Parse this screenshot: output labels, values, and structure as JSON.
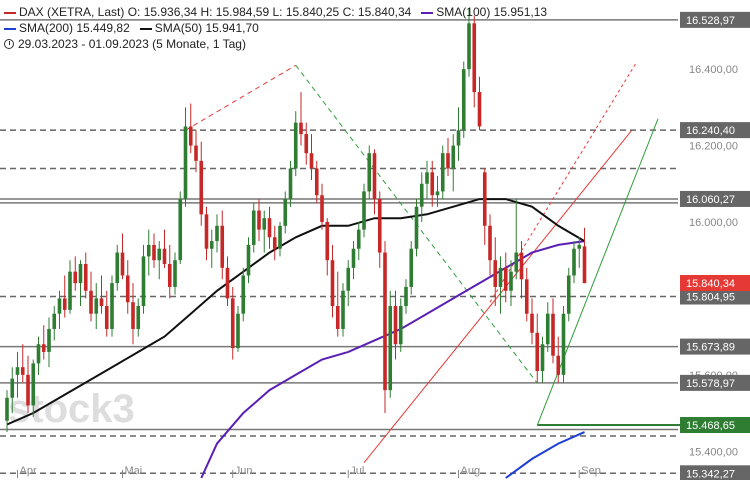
{
  "legend": {
    "instrument": "DAX (XETRA, Last)",
    "open": "O: 15.936,34",
    "high": "H: 15.984,59",
    "low": "L: 15.840,25",
    "close": "C: 15.840,34",
    "sma100_label": "SMA(100)",
    "sma100_value": "15.951,13",
    "sma200_label": "SMA(200)",
    "sma200_value": "15.449,82",
    "sma50_label": "SMA(50)",
    "sma50_value": "15.941,70",
    "range": "29.03.2023 - 01.09.2023",
    "period": "(5 Monate, 1 Tag)"
  },
  "watermark": "stock3",
  "colors": {
    "up": "#2e7d32",
    "down": "#c62828",
    "sma50": "#111111",
    "sma100": "#5a1fb3",
    "sma200": "#1e3fd6",
    "level_tag": "#666666",
    "price_tag": "#e53935",
    "support_tag": "#2e7d32"
  },
  "chart_data": {
    "type": "candlestick",
    "ylim": [
      15330,
      16560
    ],
    "x_ticks": [
      {
        "label": "Apr",
        "day": 3
      },
      {
        "label": "Mai",
        "day": 23
      },
      {
        "label": "Jun",
        "day": 44
      },
      {
        "label": "Jul",
        "day": 66
      },
      {
        "label": "Aug",
        "day": 87
      },
      {
        "label": "Sep",
        "day": 110
      }
    ],
    "y_ticks": [
      {
        "value": 16400,
        "label": "16.400,00"
      },
      {
        "value": 16200,
        "label": "16.200,00"
      },
      {
        "value": 16000,
        "label": "16.000,00"
      },
      {
        "value": 15600,
        "label": "15.600,00"
      },
      {
        "value": 15400,
        "label": "15.400,00"
      }
    ],
    "levels": [
      {
        "value": 16528.97,
        "label": "16.528,97",
        "style": "solid"
      },
      {
        "value": 16240.4,
        "label": "16.240,40",
        "style": "dashed"
      },
      {
        "value": 16140,
        "label": "",
        "style": "dashed"
      },
      {
        "value": 16060.27,
        "label": "16.060,27",
        "style": "solid"
      },
      {
        "value": 16050,
        "label": "",
        "style": "solid"
      },
      {
        "value": 15804.95,
        "label": "15.804,95",
        "style": "dashed"
      },
      {
        "value": 15673.89,
        "label": "15.673,89",
        "style": "solid"
      },
      {
        "value": 15578.97,
        "label": "15.578,97",
        "style": "solid"
      },
      {
        "value": 15468.65,
        "label": "15.468,65",
        "style": "green"
      },
      {
        "value": 15457,
        "label": "",
        "style": "solid"
      },
      {
        "value": 15440,
        "label": "",
        "style": "dashed"
      },
      {
        "value": 15342.27,
        "label": "15.342,27",
        "style": "dashed"
      }
    ],
    "last_price": {
      "value": 15840.34,
      "label": "15.840,34"
    },
    "candles": [
      {
        "day": 1,
        "o": 15480,
        "h": 15560,
        "l": 15450,
        "c": 15540
      },
      {
        "day": 2,
        "o": 15540,
        "h": 15620,
        "l": 15500,
        "c": 15590
      },
      {
        "day": 3,
        "o": 15600,
        "h": 15660,
        "l": 15540,
        "c": 15620
      },
      {
        "day": 4,
        "o": 15620,
        "h": 15680,
        "l": 15580,
        "c": 15600
      },
      {
        "day": 5,
        "o": 15600,
        "h": 15650,
        "l": 15500,
        "c": 15520
      },
      {
        "day": 6,
        "o": 15520,
        "h": 15640,
        "l": 15490,
        "c": 15630
      },
      {
        "day": 7,
        "o": 15630,
        "h": 15700,
        "l": 15600,
        "c": 15680
      },
      {
        "day": 8,
        "o": 15680,
        "h": 15730,
        "l": 15640,
        "c": 15660
      },
      {
        "day": 9,
        "o": 15660,
        "h": 15750,
        "l": 15620,
        "c": 15720
      },
      {
        "day": 10,
        "o": 15720,
        "h": 15780,
        "l": 15690,
        "c": 15760
      },
      {
        "day": 11,
        "o": 15760,
        "h": 15820,
        "l": 15720,
        "c": 15800
      },
      {
        "day": 12,
        "o": 15800,
        "h": 15860,
        "l": 15750,
        "c": 15770
      },
      {
        "day": 13,
        "o": 15770,
        "h": 15900,
        "l": 15760,
        "c": 15870
      },
      {
        "day": 14,
        "o": 15870,
        "h": 15910,
        "l": 15820,
        "c": 15840
      },
      {
        "day": 15,
        "o": 15840,
        "h": 15900,
        "l": 15780,
        "c": 15890
      },
      {
        "day": 16,
        "o": 15890,
        "h": 15920,
        "l": 15800,
        "c": 15820
      },
      {
        "day": 17,
        "o": 15820,
        "h": 15870,
        "l": 15740,
        "c": 15760
      },
      {
        "day": 18,
        "o": 15760,
        "h": 15840,
        "l": 15720,
        "c": 15800
      },
      {
        "day": 19,
        "o": 15800,
        "h": 15860,
        "l": 15760,
        "c": 15780
      },
      {
        "day": 20,
        "o": 15780,
        "h": 15820,
        "l": 15700,
        "c": 15720
      },
      {
        "day": 21,
        "o": 15720,
        "h": 15860,
        "l": 15700,
        "c": 15840
      },
      {
        "day": 22,
        "o": 15840,
        "h": 15940,
        "l": 15820,
        "c": 15920
      },
      {
        "day": 23,
        "o": 15920,
        "h": 15970,
        "l": 15850,
        "c": 15860
      },
      {
        "day": 24,
        "o": 15860,
        "h": 15900,
        "l": 15760,
        "c": 15790
      },
      {
        "day": 25,
        "o": 15790,
        "h": 15840,
        "l": 15680,
        "c": 15720
      },
      {
        "day": 26,
        "o": 15720,
        "h": 15800,
        "l": 15700,
        "c": 15780
      },
      {
        "day": 27,
        "o": 15780,
        "h": 15940,
        "l": 15760,
        "c": 15910
      },
      {
        "day": 28,
        "o": 15910,
        "h": 15980,
        "l": 15860,
        "c": 15940
      },
      {
        "day": 29,
        "o": 15940,
        "h": 15970,
        "l": 15880,
        "c": 15900
      },
      {
        "day": 30,
        "o": 15900,
        "h": 15950,
        "l": 15850,
        "c": 15930
      },
      {
        "day": 31,
        "o": 15930,
        "h": 15980,
        "l": 15880,
        "c": 15890
      },
      {
        "day": 32,
        "o": 15890,
        "h": 15940,
        "l": 15800,
        "c": 15830
      },
      {
        "day": 33,
        "o": 15830,
        "h": 15920,
        "l": 15810,
        "c": 15900
      },
      {
        "day": 34,
        "o": 15900,
        "h": 16080,
        "l": 15890,
        "c": 16060
      },
      {
        "day": 35,
        "o": 16060,
        "h": 16300,
        "l": 16040,
        "c": 16250
      },
      {
        "day": 36,
        "o": 16250,
        "h": 16310,
        "l": 16180,
        "c": 16200
      },
      {
        "day": 37,
        "o": 16200,
        "h": 16240,
        "l": 16130,
        "c": 16160
      },
      {
        "day": 38,
        "o": 16160,
        "h": 16210,
        "l": 15990,
        "c": 16020
      },
      {
        "day": 39,
        "o": 16020,
        "h": 16040,
        "l": 15900,
        "c": 15930
      },
      {
        "day": 40,
        "o": 15930,
        "h": 15980,
        "l": 15880,
        "c": 15950
      },
      {
        "day": 41,
        "o": 15950,
        "h": 16020,
        "l": 15920,
        "c": 15990
      },
      {
        "day": 42,
        "o": 15990,
        "h": 16030,
        "l": 15850,
        "c": 15880
      },
      {
        "day": 43,
        "o": 15880,
        "h": 15910,
        "l": 15780,
        "c": 15800
      },
      {
        "day": 44,
        "o": 15800,
        "h": 15830,
        "l": 15640,
        "c": 15670
      },
      {
        "day": 45,
        "o": 15670,
        "h": 15780,
        "l": 15660,
        "c": 15760
      },
      {
        "day": 46,
        "o": 15760,
        "h": 15880,
        "l": 15740,
        "c": 15860
      },
      {
        "day": 47,
        "o": 15860,
        "h": 15960,
        "l": 15840,
        "c": 15940
      },
      {
        "day": 48,
        "o": 15940,
        "h": 16050,
        "l": 15920,
        "c": 16030
      },
      {
        "day": 49,
        "o": 16030,
        "h": 16060,
        "l": 15950,
        "c": 15980
      },
      {
        "day": 50,
        "o": 15980,
        "h": 16030,
        "l": 15920,
        "c": 16010
      },
      {
        "day": 51,
        "o": 16010,
        "h": 16040,
        "l": 15930,
        "c": 15960
      },
      {
        "day": 52,
        "o": 15960,
        "h": 15990,
        "l": 15900,
        "c": 15930
      },
      {
        "day": 53,
        "o": 15930,
        "h": 16000,
        "l": 15910,
        "c": 15990
      },
      {
        "day": 54,
        "o": 15990,
        "h": 16080,
        "l": 15970,
        "c": 16060
      },
      {
        "day": 55,
        "o": 16060,
        "h": 16160,
        "l": 16040,
        "c": 16140
      },
      {
        "day": 56,
        "o": 16140,
        "h": 16290,
        "l": 16120,
        "c": 16260
      },
      {
        "day": 57,
        "o": 16260,
        "h": 16340,
        "l": 16200,
        "c": 16230
      },
      {
        "day": 58,
        "o": 16230,
        "h": 16260,
        "l": 16150,
        "c": 16180
      },
      {
        "day": 59,
        "o": 16180,
        "h": 16230,
        "l": 16110,
        "c": 16140
      },
      {
        "day": 60,
        "o": 16140,
        "h": 16160,
        "l": 16050,
        "c": 16070
      },
      {
        "day": 61,
        "o": 16070,
        "h": 16100,
        "l": 15980,
        "c": 16000
      },
      {
        "day": 62,
        "o": 16000,
        "h": 16010,
        "l": 15860,
        "c": 15900
      },
      {
        "day": 63,
        "o": 15900,
        "h": 15940,
        "l": 15750,
        "c": 15780
      },
      {
        "day": 64,
        "o": 15780,
        "h": 15870,
        "l": 15700,
        "c": 15720
      },
      {
        "day": 65,
        "o": 15720,
        "h": 15840,
        "l": 15700,
        "c": 15820
      },
      {
        "day": 66,
        "o": 15820,
        "h": 15900,
        "l": 15780,
        "c": 15880
      },
      {
        "day": 67,
        "o": 15880,
        "h": 15950,
        "l": 15850,
        "c": 15930
      },
      {
        "day": 68,
        "o": 15930,
        "h": 16000,
        "l": 15900,
        "c": 15980
      },
      {
        "day": 69,
        "o": 15980,
        "h": 16100,
        "l": 15960,
        "c": 16080
      },
      {
        "day": 70,
        "o": 16080,
        "h": 16200,
        "l": 16060,
        "c": 16180
      },
      {
        "day": 71,
        "o": 16180,
        "h": 16190,
        "l": 16020,
        "c": 16060
      },
      {
        "day": 72,
        "o": 16060,
        "h": 16080,
        "l": 15880,
        "c": 15920
      },
      {
        "day": 73,
        "o": 15920,
        "h": 15950,
        "l": 15500,
        "c": 15560
      },
      {
        "day": 74,
        "o": 15560,
        "h": 15820,
        "l": 15540,
        "c": 15780
      },
      {
        "day": 75,
        "o": 15780,
        "h": 15820,
        "l": 15640,
        "c": 15680
      },
      {
        "day": 76,
        "o": 15680,
        "h": 15800,
        "l": 15660,
        "c": 15780
      },
      {
        "day": 77,
        "o": 15780,
        "h": 15850,
        "l": 15760,
        "c": 15830
      },
      {
        "day": 78,
        "o": 15830,
        "h": 15950,
        "l": 15810,
        "c": 15930
      },
      {
        "day": 79,
        "o": 15930,
        "h": 16060,
        "l": 15910,
        "c": 16040
      },
      {
        "day": 80,
        "o": 16040,
        "h": 16130,
        "l": 16000,
        "c": 16100
      },
      {
        "day": 81,
        "o": 16100,
        "h": 16160,
        "l": 16060,
        "c": 16130
      },
      {
        "day": 82,
        "o": 16130,
        "h": 16160,
        "l": 16040,
        "c": 16070
      },
      {
        "day": 83,
        "o": 16070,
        "h": 16120,
        "l": 16040,
        "c": 16080
      },
      {
        "day": 84,
        "o": 16080,
        "h": 16200,
        "l": 16060,
        "c": 16180
      },
      {
        "day": 85,
        "o": 16180,
        "h": 16220,
        "l": 16120,
        "c": 16140
      },
      {
        "day": 86,
        "o": 16140,
        "h": 16230,
        "l": 16080,
        "c": 16200
      },
      {
        "day": 87,
        "o": 16200,
        "h": 16300,
        "l": 16160,
        "c": 16240
      },
      {
        "day": 88,
        "o": 16240,
        "h": 16420,
        "l": 16220,
        "c": 16400
      },
      {
        "day": 89,
        "o": 16400,
        "h": 16560,
        "l": 16380,
        "c": 16520
      },
      {
        "day": 90,
        "o": 16520,
        "h": 16540,
        "l": 16300,
        "c": 16340
      },
      {
        "day": 91,
        "o": 16340,
        "h": 16380,
        "l": 16240,
        "c": 16250
      },
      {
        "day": 92,
        "o": 16130,
        "h": 16140,
        "l": 15940,
        "c": 15990
      },
      {
        "day": 93,
        "o": 15990,
        "h": 16020,
        "l": 15860,
        "c": 15900
      },
      {
        "day": 94,
        "o": 15900,
        "h": 15960,
        "l": 15780,
        "c": 15830
      },
      {
        "day": 95,
        "o": 15830,
        "h": 15910,
        "l": 15760,
        "c": 15880
      },
      {
        "day": 96,
        "o": 15880,
        "h": 15920,
        "l": 15790,
        "c": 15820
      },
      {
        "day": 97,
        "o": 15820,
        "h": 15900,
        "l": 15780,
        "c": 15870
      },
      {
        "day": 98,
        "o": 15870,
        "h": 16060,
        "l": 15850,
        "c": 15920
      },
      {
        "day": 99,
        "o": 15920,
        "h": 15950,
        "l": 15800,
        "c": 15850
      },
      {
        "day": 100,
        "o": 15850,
        "h": 15880,
        "l": 15740,
        "c": 15760
      },
      {
        "day": 101,
        "o": 15760,
        "h": 15800,
        "l": 15680,
        "c": 15710
      },
      {
        "day": 102,
        "o": 15710,
        "h": 15760,
        "l": 15580,
        "c": 15610
      },
      {
        "day": 103,
        "o": 15610,
        "h": 15700,
        "l": 15580,
        "c": 15680
      },
      {
        "day": 104,
        "o": 15680,
        "h": 15790,
        "l": 15660,
        "c": 15760
      },
      {
        "day": 105,
        "o": 15760,
        "h": 15800,
        "l": 15630,
        "c": 15650
      },
      {
        "day": 106,
        "o": 15650,
        "h": 15700,
        "l": 15580,
        "c": 15600
      },
      {
        "day": 107,
        "o": 15600,
        "h": 15780,
        "l": 15580,
        "c": 15760
      },
      {
        "day": 108,
        "o": 15760,
        "h": 15880,
        "l": 15740,
        "c": 15860
      },
      {
        "day": 109,
        "o": 15860,
        "h": 15950,
        "l": 15840,
        "c": 15930
      },
      {
        "day": 110,
        "o": 15930,
        "h": 15960,
        "l": 15880,
        "c": 15940
      },
      {
        "day": 111,
        "o": 15936,
        "h": 15985,
        "l": 15840,
        "c": 15840
      }
    ],
    "sma50": [
      [
        1,
        15470
      ],
      [
        6,
        15500
      ],
      [
        11,
        15540
      ],
      [
        16,
        15580
      ],
      [
        21,
        15620
      ],
      [
        26,
        15660
      ],
      [
        31,
        15700
      ],
      [
        36,
        15760
      ],
      [
        41,
        15820
      ],
      [
        46,
        15870
      ],
      [
        51,
        15920
      ],
      [
        56,
        15960
      ],
      [
        61,
        15990
      ],
      [
        66,
        15990
      ],
      [
        71,
        16010
      ],
      [
        76,
        16010
      ],
      [
        81,
        16020
      ],
      [
        86,
        16040
      ],
      [
        91,
        16060
      ],
      [
        96,
        16060
      ],
      [
        101,
        16040
      ],
      [
        106,
        15990
      ],
      [
        111,
        15950
      ]
    ],
    "sma100": [
      [
        38,
        15330
      ],
      [
        41,
        15420
      ],
      [
        46,
        15500
      ],
      [
        51,
        15560
      ],
      [
        56,
        15600
      ],
      [
        61,
        15640
      ],
      [
        66,
        15660
      ],
      [
        71,
        15690
      ],
      [
        76,
        15720
      ],
      [
        81,
        15760
      ],
      [
        86,
        15800
      ],
      [
        91,
        15840
      ],
      [
        96,
        15880
      ],
      [
        101,
        15920
      ],
      [
        106,
        15940
      ],
      [
        111,
        15950
      ]
    ],
    "sma200": [
      [
        96,
        15330
      ],
      [
        101,
        15380
      ],
      [
        106,
        15420
      ],
      [
        111,
        15450
      ]
    ],
    "trendlines": [
      {
        "style": "red-dashed",
        "from": [
          35,
          16240
        ],
        "to": [
          56,
          16410
        ]
      },
      {
        "style": "green-dashed",
        "from": [
          56,
          16410
        ],
        "to": [
          102,
          15578
        ]
      },
      {
        "style": "red-solid",
        "from": [
          69,
          15370
        ],
        "to": [
          120,
          16240
        ]
      },
      {
        "style": "red-dotted",
        "from": [
          93,
          15790
        ],
        "to": [
          121,
          16420
        ]
      },
      {
        "style": "green-solid",
        "from": [
          102,
          15468
        ],
        "to": [
          125,
          16270
        ]
      }
    ]
  }
}
